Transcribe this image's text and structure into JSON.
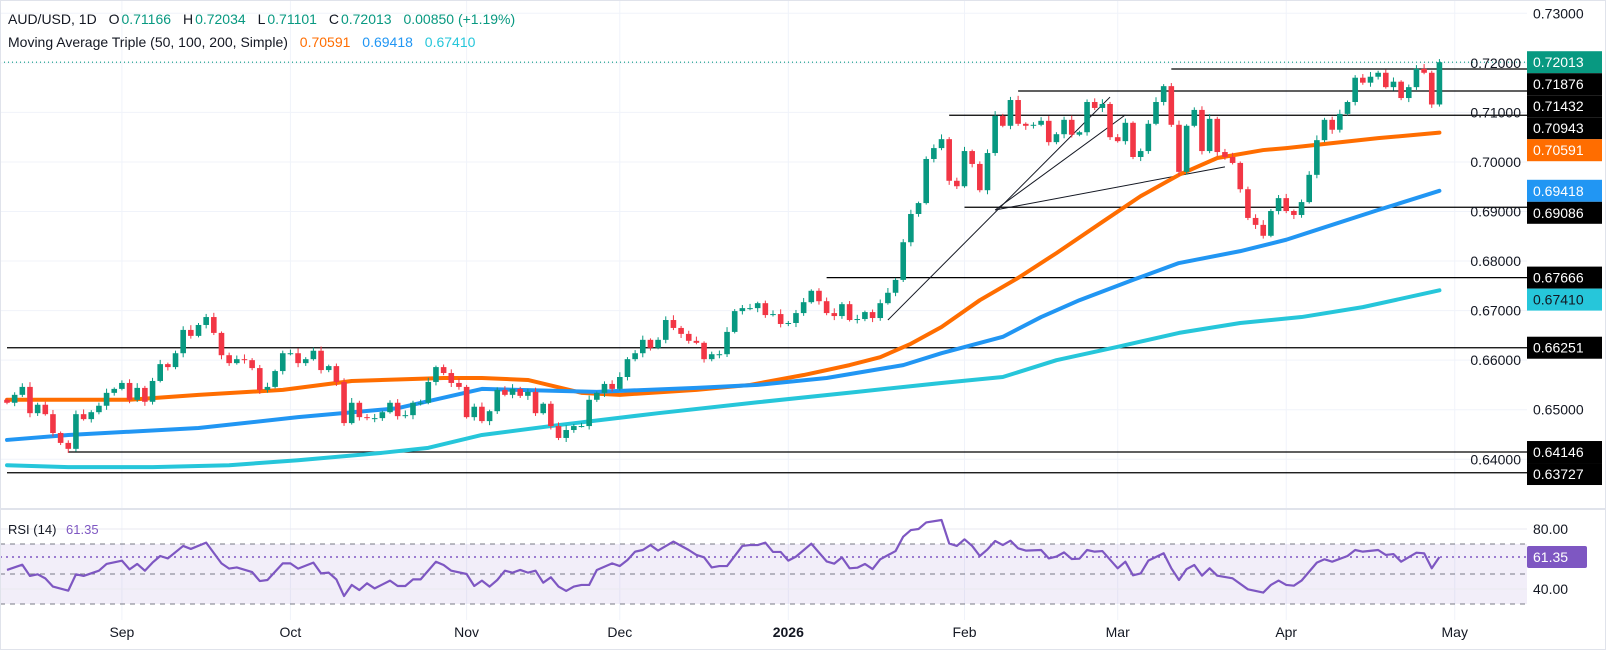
{
  "header": {
    "symbol": "AUD/USD, 1D",
    "open_label": "O",
    "open": "0.71166",
    "high_label": "H",
    "high": "0.72034",
    "low_label": "L",
    "low": "0.71101",
    "close_label": "C",
    "close": "0.72013",
    "change": "0.00850 (+1.19%)",
    "ma_title": "Moving Average Triple (50, 100, 200, Simple)",
    "ma50": "0.70591",
    "ma100": "0.69418",
    "ma200": "0.67410"
  },
  "rsi_legend": {
    "title": "RSI (14)",
    "value": "61.35"
  },
  "colors": {
    "up": "#089981",
    "down": "#F23645",
    "ma50": "#FF6D00",
    "ma100": "#2196F3",
    "ma200": "#26C6DA",
    "rsi": "#7E57C2",
    "level_line": "#000000"
  },
  "chart_data": [
    {
      "type": "candlestick",
      "symbol": "AUD/USD",
      "timeframe": "1D",
      "ylim": [
        0.634,
        0.732
      ],
      "y_ticks": [
        "0.73000",
        "0.72000",
        "0.71000",
        "0.70000",
        "0.69000",
        "0.68000",
        "0.67000",
        "0.66000",
        "0.65000",
        "0.64000"
      ],
      "x_ticks": [
        {
          "label": "Sep",
          "bar": 15,
          "bold": false
        },
        {
          "label": "Oct",
          "bar": 37,
          "bold": false
        },
        {
          "label": "Nov",
          "bar": 60,
          "bold": false
        },
        {
          "label": "Dec",
          "bar": 80,
          "bold": false
        },
        {
          "label": "2026",
          "bar": 102,
          "bold": true
        },
        {
          "label": "Feb",
          "bar": 125,
          "bold": false
        },
        {
          "label": "Mar",
          "bar": 145,
          "bold": false
        },
        {
          "label": "Apr",
          "bar": 167,
          "bold": false
        },
        {
          "label": "May",
          "bar": 189,
          "bold": false
        }
      ],
      "first_open": 0.652,
      "close": [
        0.6514,
        0.653,
        0.6546,
        0.6493,
        0.651,
        0.6491,
        0.6453,
        0.6433,
        0.6421,
        0.6491,
        0.6481,
        0.6495,
        0.6508,
        0.6534,
        0.6542,
        0.6554,
        0.652,
        0.6544,
        0.6516,
        0.6558,
        0.6592,
        0.6586,
        0.6614,
        0.6661,
        0.6649,
        0.6671,
        0.6687,
        0.6655,
        0.661,
        0.6594,
        0.6602,
        0.66,
        0.6584,
        0.654,
        0.6546,
        0.6578,
        0.6614,
        0.6614,
        0.6594,
        0.6602,
        0.6619,
        0.658,
        0.6588,
        0.6556,
        0.6473,
        0.6514,
        0.6485,
        0.6483,
        0.6483,
        0.6495,
        0.6514,
        0.6487,
        0.6489,
        0.6514,
        0.6514,
        0.6556,
        0.6586,
        0.6574,
        0.6554,
        0.6546,
        0.6485,
        0.6506,
        0.6477,
        0.6497,
        0.654,
        0.653,
        0.6542,
        0.6528,
        0.6536,
        0.6493,
        0.6512,
        0.6467,
        0.6443,
        0.6459,
        0.6467,
        0.6467,
        0.652,
        0.6534,
        0.6552,
        0.6542,
        0.6566,
        0.6602,
        0.6614,
        0.6641,
        0.6625,
        0.6641,
        0.6681,
        0.6665,
        0.6653,
        0.6639,
        0.6635,
        0.6602,
        0.6612,
        0.6612,
        0.6657,
        0.6699,
        0.6705,
        0.6705,
        0.6715,
        0.6691,
        0.6693,
        0.6673,
        0.6675,
        0.6695,
        0.6717,
        0.674,
        0.6719,
        0.6695,
        0.6689,
        0.6713,
        0.6681,
        0.6683,
        0.6697,
        0.6685,
        0.6715,
        0.6736,
        0.6762,
        0.6838,
        0.6895,
        0.6917,
        0.7006,
        0.7028,
        0.7046,
        0.6962,
        0.6951,
        0.7022,
        0.6996,
        0.6943,
        0.7018,
        0.7093,
        0.7073,
        0.7125,
        0.7077,
        0.7073,
        0.7075,
        0.7083,
        0.704,
        0.7056,
        0.7085,
        0.7055,
        0.706,
        0.7121,
        0.7109,
        0.7117,
        0.705,
        0.7042,
        0.7079,
        0.701,
        0.7022,
        0.7077,
        0.7121,
        0.7153,
        0.7075,
        0.698,
        0.7073,
        0.7105,
        0.7022,
        0.7087,
        0.702,
        0.701,
        0.6998,
        0.6945,
        0.6887,
        0.6873,
        0.6851,
        0.6901,
        0.6927,
        0.6901,
        0.6893,
        0.6919,
        0.6974,
        0.7044,
        0.7085,
        0.7065,
        0.7097,
        0.7121,
        0.717,
        0.716,
        0.7172,
        0.718,
        0.7151,
        0.7162,
        0.7129,
        0.7151,
        0.7188,
        0.718,
        0.7116,
        0.72013
      ],
      "moving_averages": [
        {
          "name": "SMA 50",
          "color": "#FF6D00",
          "last": 0.70591,
          "points": [
            [
              0,
              0.652
            ],
            [
              16,
              0.652
            ],
            [
              25,
              0.653
            ],
            [
              36,
              0.654
            ],
            [
              45,
              0.6558
            ],
            [
              57,
              0.6564
            ],
            [
              62,
              0.6564
            ],
            [
              68,
              0.656
            ],
            [
              75,
              0.6534
            ],
            [
              80,
              0.653
            ],
            [
              90,
              0.654
            ],
            [
              97,
              0.655
            ],
            [
              104,
              0.657
            ],
            [
              110,
              0.659
            ],
            [
              114,
              0.6606
            ],
            [
              118,
              0.6633
            ],
            [
              122,
              0.6667
            ],
            [
              127,
              0.6721
            ],
            [
              132,
              0.6766
            ],
            [
              137,
              0.6816
            ],
            [
              143,
              0.6879
            ],
            [
              148,
              0.6931
            ],
            [
              153,
              0.6974
            ],
            [
              158,
              0.7008
            ],
            [
              164,
              0.7024
            ],
            [
              167,
              0.7028
            ],
            [
              173,
              0.7038
            ],
            [
              179,
              0.7048
            ],
            [
              187,
              0.70591
            ]
          ]
        },
        {
          "name": "SMA 100",
          "color": "#2196F3",
          "last": 0.69418,
          "points": [
            [
              0,
              0.6439
            ],
            [
              8,
              0.6449
            ],
            [
              25,
              0.6463
            ],
            [
              38,
              0.6485
            ],
            [
              51,
              0.6503
            ],
            [
              62,
              0.6542
            ],
            [
              77,
              0.6536
            ],
            [
              90,
              0.6544
            ],
            [
              98,
              0.655
            ],
            [
              107,
              0.6564
            ],
            [
              117,
              0.659
            ],
            [
              122,
              0.6614
            ],
            [
              130,
              0.6647
            ],
            [
              135,
              0.6687
            ],
            [
              140,
              0.6721
            ],
            [
              147,
              0.6762
            ],
            [
              153,
              0.6796
            ],
            [
              161,
              0.682
            ],
            [
              167,
              0.6843
            ],
            [
              171,
              0.6863
            ],
            [
              179,
              0.6903
            ],
            [
              187,
              0.69418
            ]
          ]
        },
        {
          "name": "SMA 200",
          "color": "#26C6DA",
          "last": 0.6741,
          "points": [
            [
              0,
              0.6388
            ],
            [
              8,
              0.6384
            ],
            [
              19,
              0.6384
            ],
            [
              29,
              0.6388
            ],
            [
              38,
              0.6398
            ],
            [
              49,
              0.6413
            ],
            [
              55,
              0.6423
            ],
            [
              62,
              0.6449
            ],
            [
              72,
              0.6469
            ],
            [
              85,
              0.6493
            ],
            [
              98,
              0.6515
            ],
            [
              111,
              0.6536
            ],
            [
              122,
              0.6554
            ],
            [
              130,
              0.6566
            ],
            [
              137,
              0.66
            ],
            [
              145,
              0.6627
            ],
            [
              153,
              0.6655
            ],
            [
              161,
              0.6675
            ],
            [
              169,
              0.6687
            ],
            [
              177,
              0.6707
            ],
            [
              187,
              0.6741
            ]
          ]
        }
      ],
      "current_price": {
        "value": "0.72013",
        "color": "#089981"
      },
      "horizontal_levels": [
        {
          "value": "0.71876",
          "from_bar": 152
        },
        {
          "value": "0.71432",
          "from_bar": 132
        },
        {
          "value": "0.70943",
          "from_bar": 123
        },
        {
          "value": "0.69086",
          "from_bar": 125
        },
        {
          "value": "0.67666",
          "from_bar": 107
        },
        {
          "value": "0.66251",
          "from_bar": 0
        },
        {
          "value": "0.64146",
          "from_bar": 8
        },
        {
          "value": "0.63727",
          "from_bar": 0
        }
      ],
      "trend_lines": [
        [
          [
            115,
            0.6681
          ],
          [
            144,
            0.7131
          ]
        ],
        [
          [
            129,
            0.6903
          ],
          [
            146,
            0.7095
          ]
        ],
        [
          [
            129,
            0.6903
          ],
          [
            159,
            0.699
          ]
        ]
      ]
    },
    {
      "type": "line",
      "title": "RSI (14)",
      "color": "#7E57C2",
      "ylim": [
        25,
        90
      ],
      "y_ticks": [
        "80.00",
        "40.00"
      ],
      "levels": {
        "upper": 70,
        "middle": 50,
        "lower": 30
      },
      "last": "61.35",
      "points": [
        [
          0,
          52.7
        ],
        [
          2,
          56.2
        ],
        [
          3,
          48.7
        ],
        [
          4,
          49.8
        ],
        [
          5,
          47.1
        ],
        [
          6,
          41.6
        ],
        [
          8,
          38.9
        ],
        [
          9,
          49.8
        ],
        [
          10,
          48.7
        ],
        [
          12,
          52.2
        ],
        [
          13,
          56.7
        ],
        [
          15,
          58.9
        ],
        [
          16,
          53.1
        ],
        [
          17,
          56.7
        ],
        [
          18,
          52.2
        ],
        [
          19,
          57.6
        ],
        [
          20,
          62.0
        ],
        [
          21,
          60.4
        ],
        [
          23,
          68.7
        ],
        [
          24,
          66.7
        ],
        [
          26,
          70.9
        ],
        [
          28,
          57.1
        ],
        [
          29,
          53.6
        ],
        [
          30,
          54.4
        ],
        [
          32,
          51.3
        ],
        [
          33,
          45.3
        ],
        [
          34,
          46.0
        ],
        [
          36,
          57.1
        ],
        [
          37,
          57.1
        ],
        [
          38,
          53.6
        ],
        [
          40,
          57.6
        ],
        [
          41,
          50.4
        ],
        [
          42,
          50.9
        ],
        [
          43,
          46.4
        ],
        [
          44,
          35.3
        ],
        [
          45,
          42.7
        ],
        [
          46,
          39.3
        ],
        [
          47,
          43.8
        ],
        [
          48,
          40.4
        ],
        [
          50,
          45.6
        ],
        [
          51,
          42.0
        ],
        [
          52,
          42.0
        ],
        [
          53,
          46.4
        ],
        [
          54,
          46.4
        ],
        [
          56,
          58.2
        ],
        [
          57,
          56.0
        ],
        [
          58,
          52.2
        ],
        [
          60,
          50.0
        ],
        [
          61,
          42.0
        ],
        [
          62,
          45.6
        ],
        [
          63,
          41.6
        ],
        [
          64,
          46.0
        ],
        [
          65,
          52.2
        ],
        [
          66,
          50.9
        ],
        [
          67,
          52.7
        ],
        [
          68,
          50.9
        ],
        [
          69,
          52.2
        ],
        [
          70,
          44.2
        ],
        [
          71,
          47.8
        ],
        [
          72,
          41.6
        ],
        [
          73,
          38.7
        ],
        [
          74,
          41.6
        ],
        [
          75,
          42.7
        ],
        [
          76,
          42.7
        ],
        [
          77,
          52.7
        ],
        [
          79,
          57.1
        ],
        [
          80,
          55.3
        ],
        [
          81,
          59.3
        ],
        [
          82,
          64.9
        ],
        [
          83,
          66.0
        ],
        [
          84,
          69.3
        ],
        [
          85,
          65.6
        ],
        [
          87,
          71.6
        ],
        [
          89,
          66.0
        ],
        [
          90,
          62.7
        ],
        [
          91,
          61.1
        ],
        [
          92,
          54.4
        ],
        [
          93,
          55.3
        ],
        [
          94,
          55.3
        ],
        [
          96,
          68.7
        ],
        [
          97,
          69.3
        ],
        [
          98,
          69.3
        ],
        [
          99,
          70.9
        ],
        [
          100,
          64.7
        ],
        [
          101,
          64.7
        ],
        [
          102,
          58.9
        ],
        [
          103,
          61.6
        ],
        [
          105,
          70.2
        ],
        [
          107,
          58.4
        ],
        [
          108,
          56.9
        ],
        [
          109,
          61.1
        ],
        [
          110,
          53.8
        ],
        [
          111,
          54.2
        ],
        [
          112,
          56.7
        ],
        [
          113,
          53.3
        ],
        [
          114,
          59.8
        ],
        [
          116,
          65.3
        ],
        [
          117,
          74.9
        ],
        [
          118,
          79.3
        ],
        [
          119,
          80.0
        ],
        [
          120,
          84.4
        ],
        [
          122,
          86.0
        ],
        [
          123,
          70.4
        ],
        [
          124,
          68.7
        ],
        [
          125,
          73.1
        ],
        [
          126,
          68.7
        ],
        [
          127,
          62.0
        ],
        [
          128,
          66.4
        ],
        [
          129,
          72.0
        ],
        [
          130,
          69.3
        ],
        [
          131,
          72.2
        ],
        [
          132,
          67.1
        ],
        [
          133,
          65.6
        ],
        [
          135,
          66.0
        ],
        [
          136,
          60.4
        ],
        [
          137,
          61.6
        ],
        [
          138,
          64.4
        ],
        [
          139,
          60.0
        ],
        [
          140,
          60.2
        ],
        [
          141,
          66.0
        ],
        [
          142,
          64.9
        ],
        [
          143,
          65.3
        ],
        [
          145,
          53.8
        ],
        [
          146,
          58.2
        ],
        [
          147,
          49.1
        ],
        [
          148,
          50.4
        ],
        [
          149,
          58.9
        ],
        [
          151,
          63.8
        ],
        [
          152,
          53.8
        ],
        [
          153,
          46.0
        ],
        [
          154,
          53.3
        ],
        [
          155,
          56.0
        ],
        [
          156,
          48.9
        ],
        [
          157,
          53.8
        ],
        [
          158,
          48.9
        ],
        [
          160,
          47.1
        ],
        [
          162,
          39.8
        ],
        [
          164,
          37.6
        ],
        [
          165,
          42.7
        ],
        [
          166,
          45.6
        ],
        [
          167,
          42.7
        ],
        [
          168,
          42.2
        ],
        [
          169,
          45.6
        ],
        [
          171,
          57.6
        ],
        [
          172,
          59.8
        ],
        [
          173,
          58.2
        ],
        [
          175,
          62.0
        ],
        [
          176,
          66.0
        ],
        [
          177,
          64.9
        ],
        [
          179,
          66.0
        ],
        [
          180,
          62.7
        ],
        [
          181,
          63.3
        ],
        [
          182,
          58.2
        ],
        [
          184,
          64.2
        ],
        [
          185,
          63.8
        ],
        [
          186,
          53.8
        ],
        [
          187,
          61.35
        ]
      ]
    }
  ]
}
